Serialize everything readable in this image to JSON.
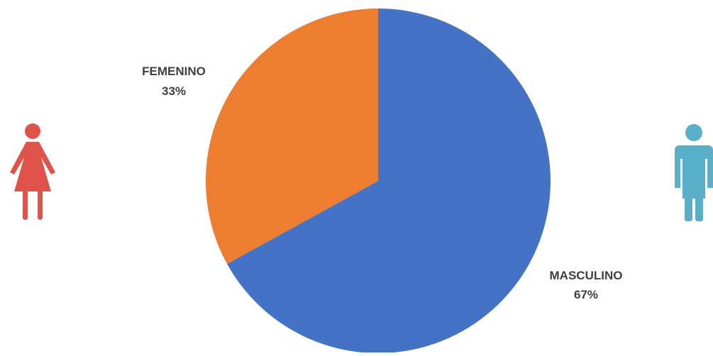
{
  "chart_data": {
    "type": "pie",
    "categories": [
      "MASCULINO",
      "FEMENINO"
    ],
    "values": [
      67,
      33
    ],
    "value_labels": [
      "67%",
      "33%"
    ],
    "colors": [
      "#4472C4",
      "#ED7D31"
    ],
    "start_angle_deg": 0,
    "direction": "clockwise",
    "title": "",
    "legend": "none"
  },
  "icons": {
    "female": {
      "name": "female-person-icon",
      "color": "#E0534A"
    },
    "male": {
      "name": "male-person-icon",
      "color": "#5AAFC8"
    }
  }
}
